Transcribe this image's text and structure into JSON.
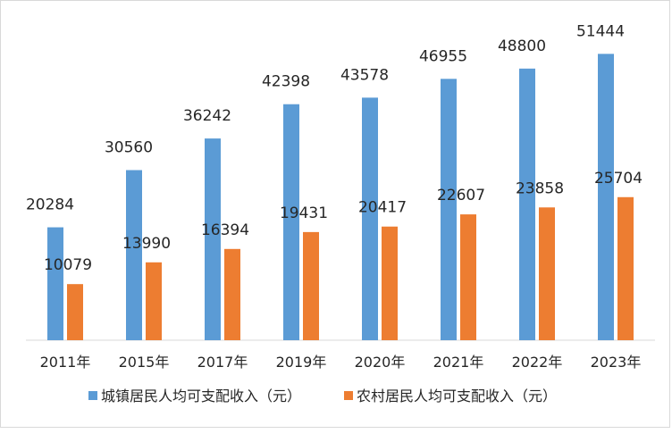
{
  "chart_data": {
    "type": "bar",
    "title": "",
    "xlabel": "",
    "ylabel": "",
    "ylim": [
      0,
      60000
    ],
    "grid": false,
    "legend_position": "bottom",
    "categories": [
      "2011年",
      "2015年",
      "2017年",
      "2019年",
      "2020年",
      "2021年",
      "2022年",
      "2023年"
    ],
    "series": [
      {
        "name": "城镇居民人均可支配收入（元）",
        "color": "#5b9bd5",
        "values": [
          20284,
          30560,
          36242,
          42398,
          43578,
          46955,
          48800,
          51444
        ]
      },
      {
        "name": "农村居民人均可支配收入（元）",
        "color": "#ed7d31",
        "values": [
          10079,
          13990,
          16394,
          19431,
          20417,
          22607,
          23858,
          25704
        ]
      }
    ]
  }
}
